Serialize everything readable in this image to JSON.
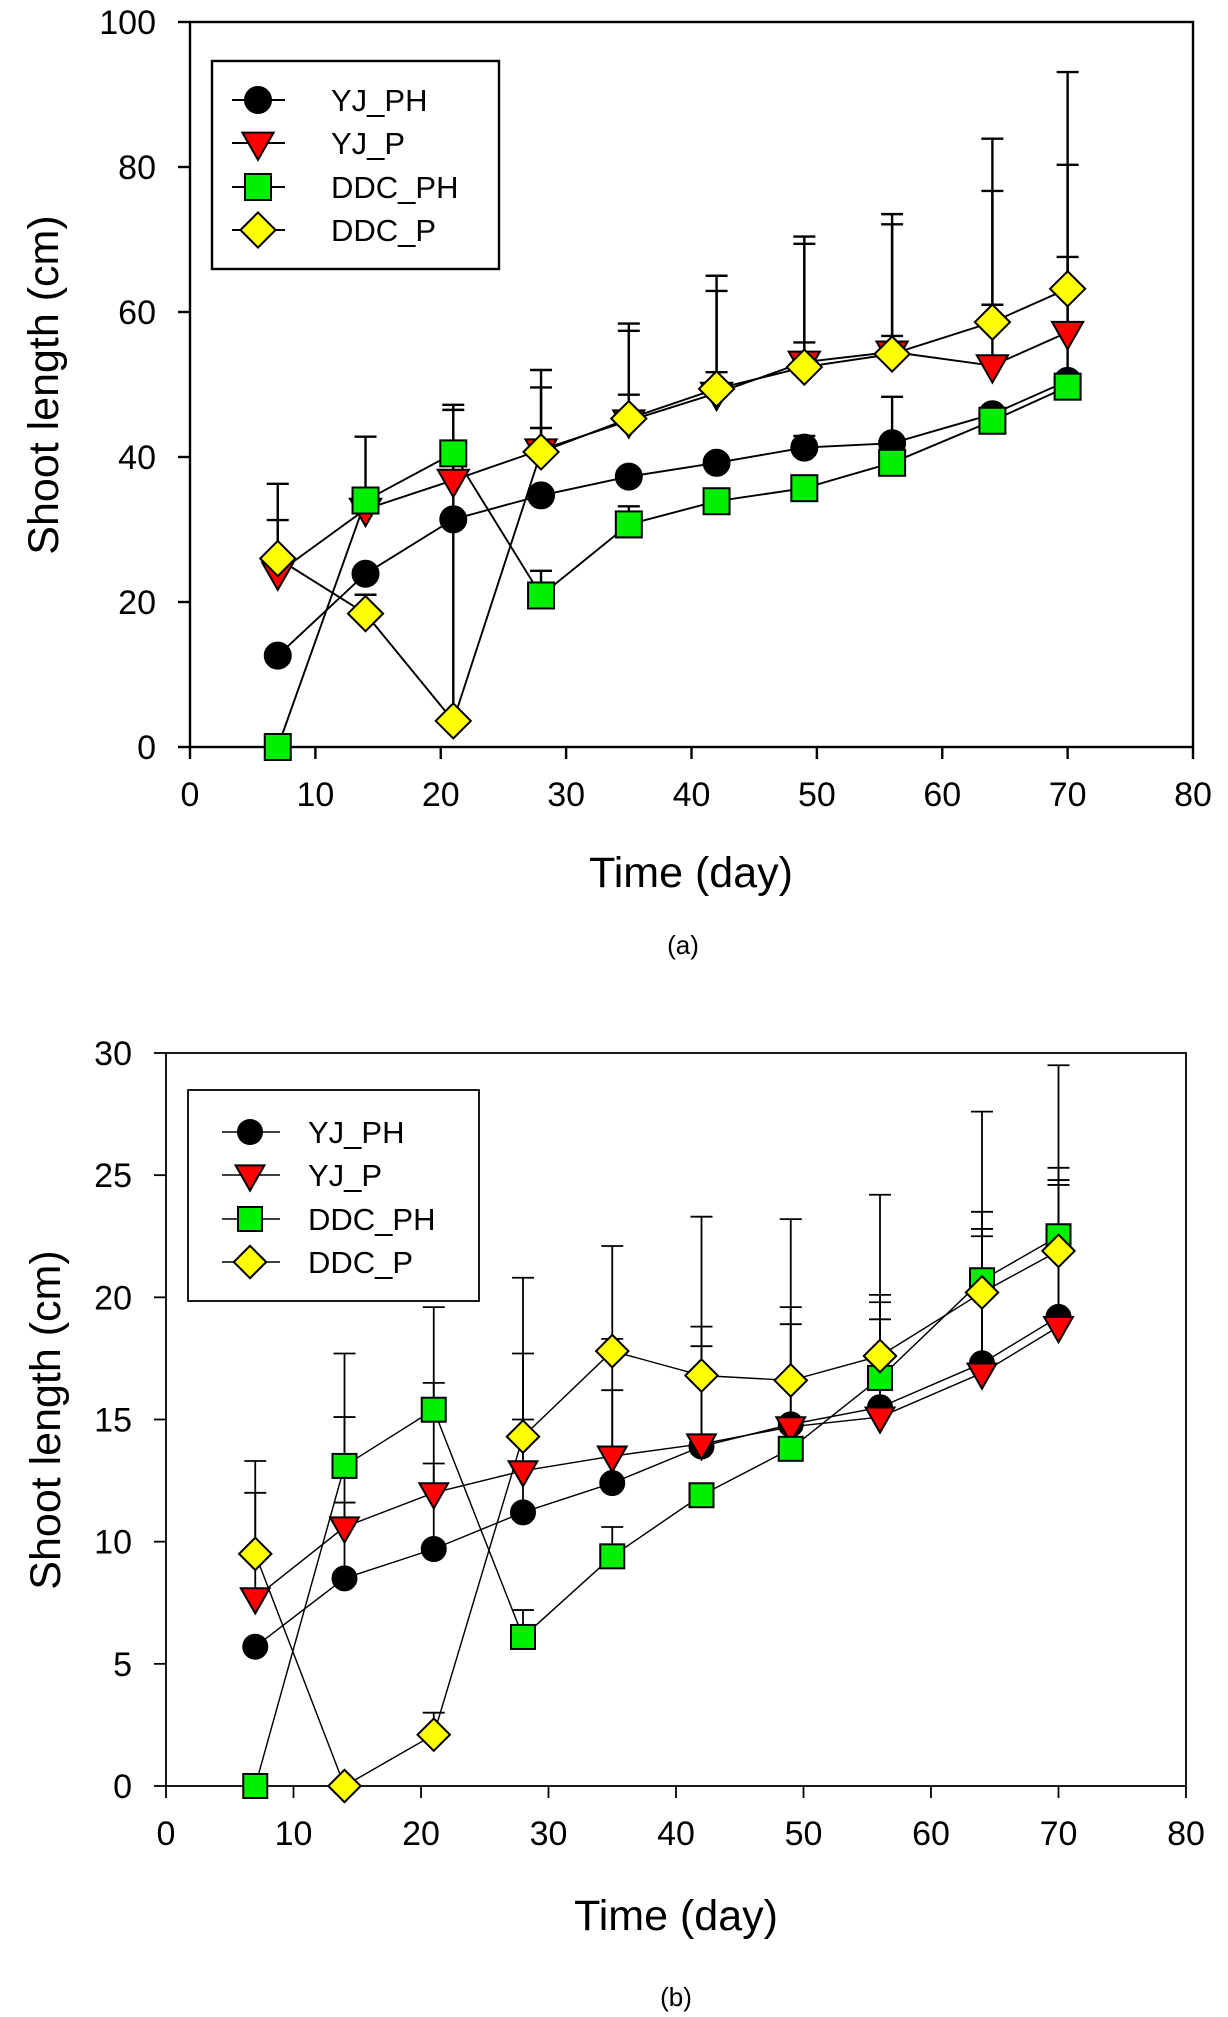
{
  "chart_data": [
    {
      "type": "line",
      "panel_label": "(a)",
      "title": "",
      "xlabel": "Time (day)",
      "ylabel": "Shoot length (cm)",
      "xlim": [
        0,
        80
      ],
      "ylim": [
        0,
        100
      ],
      "xticks": [
        0,
        10,
        20,
        30,
        40,
        50,
        60,
        70,
        80
      ],
      "yticks": [
        0,
        20,
        40,
        60,
        80,
        100
      ],
      "grid": false,
      "legend_position": "top-left",
      "x": [
        7,
        14,
        21,
        28,
        35,
        42,
        49,
        56,
        64,
        70
      ],
      "series": [
        {
          "name": "YJ_PH",
          "marker": "circle",
          "color": "#000000",
          "values": [
            12.6,
            23.9,
            31.4,
            34.7,
            37.3,
            39.2,
            41.3,
            41.9,
            45.9,
            50.5
          ],
          "error_upper": [
            null,
            null,
            null,
            null,
            null,
            null,
            42.9,
            48.3,
            null,
            67.6
          ]
        },
        {
          "name": "YJ_P",
          "marker": "triangle-down",
          "color": "#ff0000",
          "values": [
            24.0,
            32.8,
            36.8,
            41.0,
            45.0,
            48.8,
            53.1,
            54.5,
            52.6,
            57.2
          ],
          "error_upper": [
            31.3,
            42.8,
            46.5,
            49.6,
            57.4,
            62.9,
            69.4,
            72.1,
            76.7,
            80.3
          ]
        },
        {
          "name": "DDC_PH",
          "marker": "square",
          "color": "#00ee00",
          "values": [
            0.0,
            34.0,
            40.5,
            20.9,
            30.7,
            33.9,
            35.7,
            39.2,
            45.0,
            49.7
          ],
          "error_upper": [
            null,
            null,
            null,
            24.3,
            33.2,
            null,
            null,
            null,
            null,
            null
          ]
        },
        {
          "name": "DDC_P",
          "marker": "diamond",
          "color": "#ffff00",
          "values": [
            26.0,
            18.4,
            3.6,
            40.7,
            45.3,
            49.4,
            52.4,
            54.2,
            58.6,
            63.2
          ],
          "error_upper": [
            36.3,
            21.0,
            47.2,
            52.0,
            58.4,
            65.0,
            70.4,
            73.5,
            83.9,
            93.1
          ]
        }
      ],
      "extra_error_caps": [
        {
          "x": 28,
          "y": 44.0
        },
        {
          "x": 35,
          "y": 48.6
        },
        {
          "x": 42,
          "y": 51.7
        },
        {
          "x": 49,
          "y": 55.8
        },
        {
          "x": 56,
          "y": 56.7
        },
        {
          "x": 64,
          "y": 61.0
        }
      ]
    },
    {
      "type": "line",
      "panel_label": "(b)",
      "title": "",
      "xlabel": "Time (day)",
      "ylabel": "Shoot length (cm)",
      "xlim": [
        0,
        80
      ],
      "ylim": [
        0,
        30
      ],
      "xticks": [
        0,
        10,
        20,
        30,
        40,
        50,
        60,
        70,
        80
      ],
      "yticks": [
        0,
        5,
        10,
        15,
        20,
        25,
        30
      ],
      "grid": false,
      "legend_position": "top-left",
      "x": [
        7,
        14,
        21,
        28,
        35,
        42,
        49,
        56,
        64,
        70
      ],
      "series": [
        {
          "name": "YJ_PH",
          "marker": "circle",
          "color": "#000000",
          "values": [
            5.7,
            8.5,
            9.7,
            11.2,
            12.4,
            13.9,
            14.8,
            15.5,
            17.3,
            19.2
          ],
          "error_upper": [
            null,
            11.6,
            13.2,
            15.0,
            16.2,
            18.0,
            18.9,
            19.8,
            22.5,
            24.6
          ]
        },
        {
          "name": "YJ_P",
          "marker": "triangle-down",
          "color": "#ff0000",
          "values": [
            7.7,
            10.6,
            12.0,
            12.9,
            13.5,
            14.0,
            14.7,
            15.1,
            16.9,
            18.8
          ],
          "error_upper": [
            12.0,
            15.1,
            16.5,
            17.7,
            18.3,
            18.8,
            19.6,
            20.1,
            22.8,
            24.8
          ]
        },
        {
          "name": "DDC_PH",
          "marker": "square",
          "color": "#00ee00",
          "values": [
            0.0,
            13.1,
            15.4,
            6.1,
            9.4,
            11.9,
            13.8,
            16.7,
            20.7,
            22.5
          ],
          "error_upper": [
            null,
            17.7,
            19.6,
            7.2,
            10.6,
            null,
            null,
            19.1,
            23.5,
            25.3
          ]
        },
        {
          "name": "DDC_P",
          "marker": "diamond",
          "color": "#ffff00",
          "values": [
            9.5,
            0.0,
            2.1,
            14.3,
            17.8,
            16.8,
            16.6,
            17.6,
            20.2,
            21.9
          ],
          "error_upper": [
            13.3,
            null,
            3.0,
            20.8,
            22.1,
            23.3,
            23.2,
            24.2,
            27.6,
            29.5
          ]
        }
      ],
      "extra_error_caps": []
    }
  ]
}
